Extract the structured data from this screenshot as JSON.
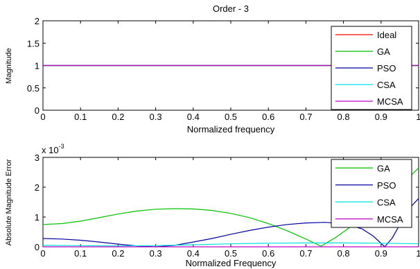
{
  "chart_data": [
    {
      "type": "line",
      "title": "Order - 3",
      "xlabel": "Normalized frequency",
      "ylabel": "Magnitude",
      "xlim": [
        0,
        1
      ],
      "ylim": [
        0,
        2
      ],
      "xticks": [
        "0",
        "0.1",
        "0.2",
        "0.3",
        "0.4",
        "0.5",
        "0.6",
        "0.7",
        "0.8",
        "0.9",
        "1"
      ],
      "yticks": [
        "0",
        "0.5",
        "1",
        "1.5",
        "2"
      ],
      "legend_position": "top-right",
      "series": [
        {
          "name": "Ideal",
          "color": "#ff0000",
          "x": [
            0,
            1
          ],
          "y": [
            1,
            1
          ]
        },
        {
          "name": "GA",
          "color": "#00c000",
          "x": [
            0,
            1
          ],
          "y": [
            1,
            1
          ]
        },
        {
          "name": "PSO",
          "color": "#0000a0",
          "x": [
            0,
            1
          ],
          "y": [
            1,
            1
          ]
        },
        {
          "name": "CSA",
          "color": "#00e0e0",
          "x": [
            0,
            1
          ],
          "y": [
            1,
            1
          ]
        },
        {
          "name": "MCSA",
          "color": "#c000c0",
          "x": [
            0,
            1
          ],
          "y": [
            1,
            1
          ]
        }
      ]
    },
    {
      "type": "line",
      "title": "",
      "xlabel": "Normalized Frequency",
      "ylabel": "Absolute Magnitude Error",
      "exponent_label": "x 10",
      "exponent_power": "-3",
      "xlim": [
        0,
        1
      ],
      "ylim": [
        0,
        3
      ],
      "xticks": [
        "0",
        "0.1",
        "0.2",
        "0.3",
        "0.4",
        "0.5",
        "0.6",
        "0.7",
        "0.8",
        "0.9",
        "1"
      ],
      "yticks": [
        "0",
        "1",
        "2",
        "3"
      ],
      "legend_position": "top-right",
      "series": [
        {
          "name": "GA",
          "color": "#00c000",
          "x": [
            0,
            0.05,
            0.1,
            0.15,
            0.2,
            0.25,
            0.3,
            0.35,
            0.4,
            0.45,
            0.5,
            0.55,
            0.6,
            0.65,
            0.7,
            0.74,
            0.78,
            0.82,
            0.86,
            0.9,
            0.94,
            0.98,
            1.0
          ],
          "y": [
            0.75,
            0.78,
            0.86,
            0.98,
            1.1,
            1.2,
            1.26,
            1.28,
            1.27,
            1.22,
            1.12,
            0.98,
            0.78,
            0.54,
            0.26,
            0.02,
            0.32,
            0.68,
            1.05,
            1.45,
            1.9,
            2.4,
            2.65
          ]
        },
        {
          "name": "PSO",
          "color": "#0000a0",
          "x": [
            0,
            0.05,
            0.1,
            0.15,
            0.2,
            0.25,
            0.3,
            0.35,
            0.4,
            0.45,
            0.5,
            0.55,
            0.6,
            0.65,
            0.7,
            0.75,
            0.8,
            0.85,
            0.88,
            0.91,
            0.93,
            0.95,
            0.98,
            1.0
          ],
          "y": [
            0.28,
            0.26,
            0.22,
            0.16,
            0.09,
            0.03,
            0.0,
            0.05,
            0.16,
            0.28,
            0.42,
            0.55,
            0.66,
            0.75,
            0.8,
            0.82,
            0.78,
            0.6,
            0.35,
            0.0,
            0.3,
            0.75,
            1.35,
            1.62
          ]
        },
        {
          "name": "CSA",
          "color": "#00e0e0",
          "x": [
            0,
            0.1,
            0.2,
            0.3,
            0.4,
            0.5,
            0.6,
            0.7,
            0.8,
            0.9,
            1.0
          ],
          "y": [
            0.05,
            0.04,
            0.03,
            0.04,
            0.07,
            0.1,
            0.12,
            0.13,
            0.13,
            0.12,
            0.1
          ]
        },
        {
          "name": "MCSA",
          "color": "#c000c0",
          "x": [
            0,
            0.25,
            0.5,
            0.75,
            1.0
          ],
          "y": [
            0.0,
            0.0,
            0.0,
            0.0,
            0.0
          ]
        }
      ]
    }
  ]
}
